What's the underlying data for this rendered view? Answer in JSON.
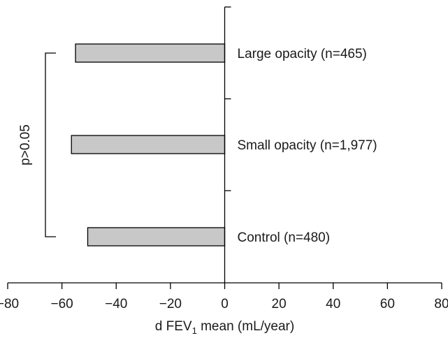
{
  "chart_data": {
    "type": "bar",
    "orientation": "horizontal",
    "categories": [
      "Large opacity (n=465)",
      "Small opacity (n=1,977)",
      "Control (n=480)"
    ],
    "values": [
      -55,
      -56.5,
      -50.5
    ],
    "xlim": [
      -80,
      80
    ],
    "xticks": [
      -80,
      -60,
      -40,
      -20,
      0,
      20,
      40,
      60,
      80
    ],
    "xticklabels": [
      "−80",
      "−60",
      "−40",
      "−20",
      "0",
      "20",
      "40",
      "60",
      "80"
    ],
    "xlabel": {
      "prefix": "d FEV",
      "subscript": "1",
      "suffix": " mean (mL/year)"
    },
    "bar_color": "#c8c8c8",
    "bar_edge_color": "#000000",
    "grid": false,
    "annotations": [
      {
        "type": "bracket",
        "from_category": 0,
        "to_category": 2,
        "label": "p>0.05"
      }
    ]
  }
}
